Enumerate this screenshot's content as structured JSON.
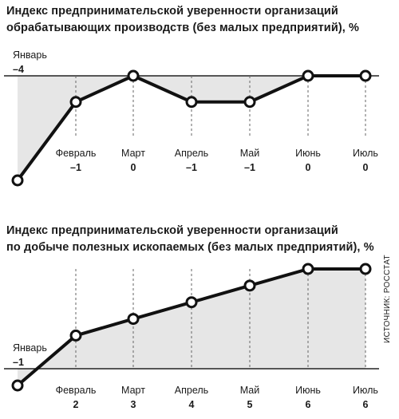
{
  "source_label": "ИСТОЧНИК: РОССТАТ",
  "chart_data": [
    {
      "type": "line",
      "title": "Индекс предпринимательской уверенности организаций обрабатывающих производств (без малых предприятий), %",
      "title_lines": [
        "Индекс предпринимательской уверенности организаций",
        "обрабатывающих производств (без малых предприятий), %"
      ],
      "categories": [
        "Январь",
        "Февраль",
        "Март",
        "Апрель",
        "Май",
        "Июнь",
        "Июль"
      ],
      "values": [
        -4,
        -1,
        0,
        -1,
        -1,
        0,
        0
      ],
      "value_labels": [
        "–4",
        "–1",
        "0",
        "–1",
        "–1",
        "0",
        "0"
      ],
      "ylim": [
        -4,
        0
      ],
      "baseline_category": "Январь",
      "grid": true,
      "colors": {
        "line": "#111111",
        "fill": "#e6e6e6",
        "grid": "#666666"
      }
    },
    {
      "type": "line",
      "title": "Индекс предпринимательской уверенности организаций по добыче полезных ископаемых (без малых предприятий), %",
      "title_lines": [
        "Индекс предпринимательской уверенности организаций",
        "по добыче полезных ископаемых (без малых предприятий), %"
      ],
      "categories": [
        "Январь",
        "Февраль",
        "Март",
        "Апрель",
        "Май",
        "Июнь",
        "Июль"
      ],
      "values": [
        -1,
        2,
        3,
        4,
        5,
        6,
        6
      ],
      "value_labels": [
        "–1",
        "2",
        "3",
        "4",
        "5",
        "6",
        "6"
      ],
      "ylim": [
        -1,
        6
      ],
      "baseline_category": "Январь",
      "grid": true,
      "colors": {
        "line": "#111111",
        "fill": "#e6e6e6",
        "grid": "#666666"
      }
    }
  ]
}
